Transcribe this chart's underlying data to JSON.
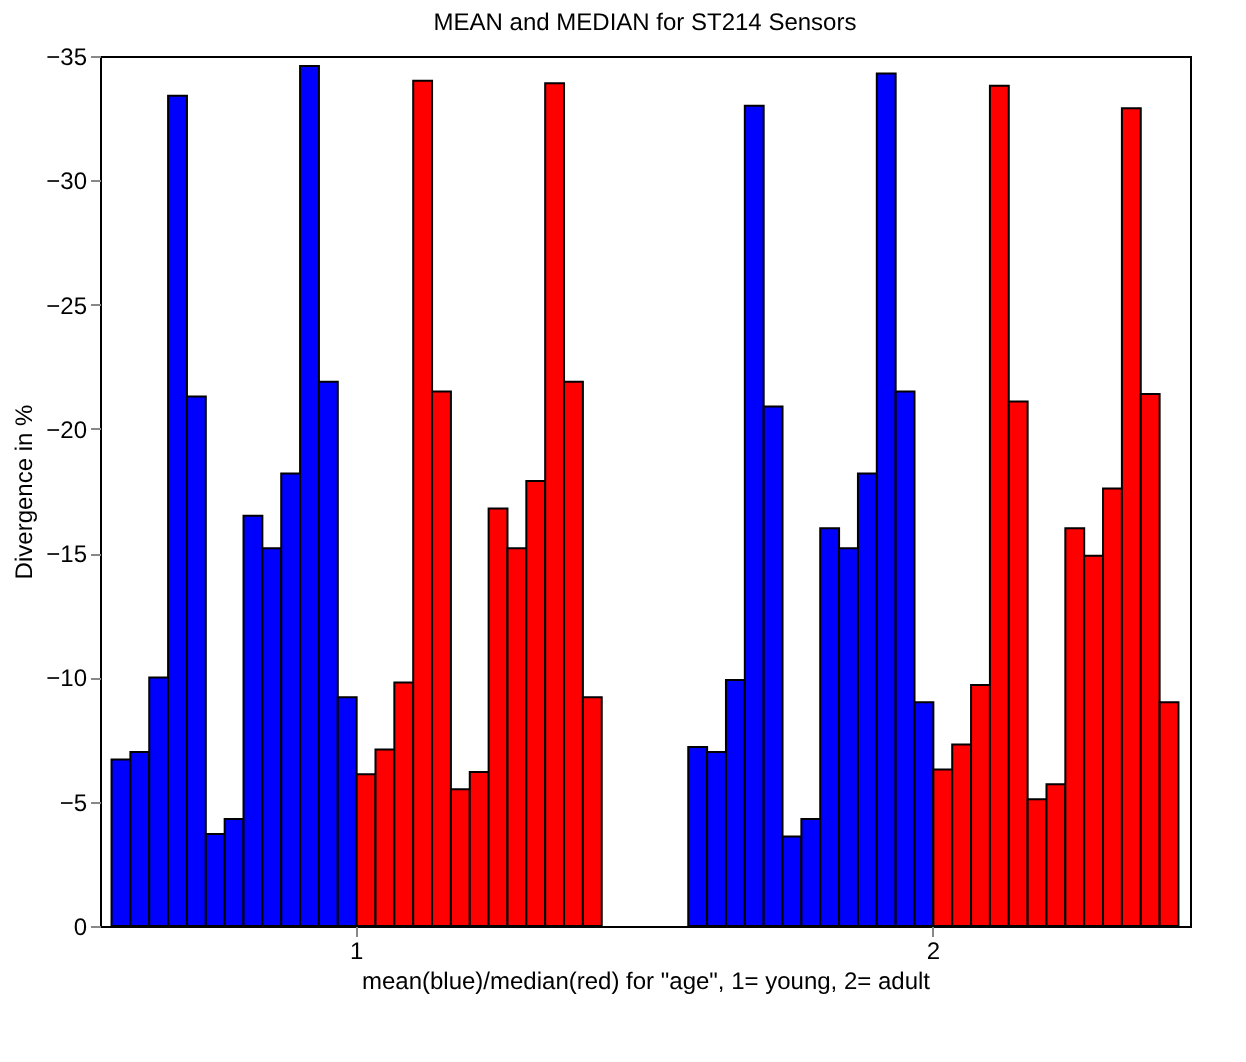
{
  "chart_data": {
    "type": "bar",
    "title": "MEAN and MEDIAN for ST214 Sensors",
    "xlabel": "mean(blue)/median(red) for \"age\", 1= young, 2= adult",
    "ylabel": "Divergence in %",
    "categories": [
      "1",
      "2"
    ],
    "ylim": [
      0,
      -35
    ],
    "yticks": [
      0,
      -5,
      -10,
      -15,
      -20,
      -25,
      -30,
      -35
    ],
    "grid": false,
    "series": [
      {
        "color": "#0000ff",
        "values": [
          -6.7,
          -7.2
        ]
      },
      {
        "color": "#0000ff",
        "values": [
          -7.0,
          -7.0
        ]
      },
      {
        "color": "#0000ff",
        "values": [
          -10.0,
          -9.9
        ]
      },
      {
        "color": "#0000ff",
        "values": [
          -33.4,
          -33.0
        ]
      },
      {
        "color": "#0000ff",
        "values": [
          -21.3,
          -20.9
        ]
      },
      {
        "color": "#0000ff",
        "values": [
          -3.7,
          -3.6
        ]
      },
      {
        "color": "#0000ff",
        "values": [
          -4.3,
          -4.3
        ]
      },
      {
        "color": "#0000ff",
        "values": [
          -16.5,
          -16.0
        ]
      },
      {
        "color": "#0000ff",
        "values": [
          -15.2,
          -15.2
        ]
      },
      {
        "color": "#0000ff",
        "values": [
          -18.2,
          -18.2
        ]
      },
      {
        "color": "#0000ff",
        "values": [
          -34.6,
          -34.3
        ]
      },
      {
        "color": "#0000ff",
        "values": [
          -21.9,
          -21.5
        ]
      },
      {
        "color": "#0000ff",
        "values": [
          -9.2,
          -9.0
        ]
      },
      {
        "color": "#ff0000",
        "values": [
          -6.1,
          -6.3
        ]
      },
      {
        "color": "#ff0000",
        "values": [
          -7.1,
          -7.3
        ]
      },
      {
        "color": "#ff0000",
        "values": [
          -9.8,
          -9.7
        ]
      },
      {
        "color": "#ff0000",
        "values": [
          -34.0,
          -33.8
        ]
      },
      {
        "color": "#ff0000",
        "values": [
          -21.5,
          -21.1
        ]
      },
      {
        "color": "#ff0000",
        "values": [
          -5.5,
          -5.1
        ]
      },
      {
        "color": "#ff0000",
        "values": [
          -6.2,
          -5.7
        ]
      },
      {
        "color": "#ff0000",
        "values": [
          -16.8,
          -16.0
        ]
      },
      {
        "color": "#ff0000",
        "values": [
          -15.2,
          -14.9
        ]
      },
      {
        "color": "#ff0000",
        "values": [
          -17.9,
          -17.6
        ]
      },
      {
        "color": "#ff0000",
        "values": [
          -33.9,
          -32.9
        ]
      },
      {
        "color": "#ff0000",
        "values": [
          -21.9,
          -21.4
        ]
      },
      {
        "color": "#ff0000",
        "values": [
          -9.2,
          -9.0
        ]
      }
    ]
  }
}
